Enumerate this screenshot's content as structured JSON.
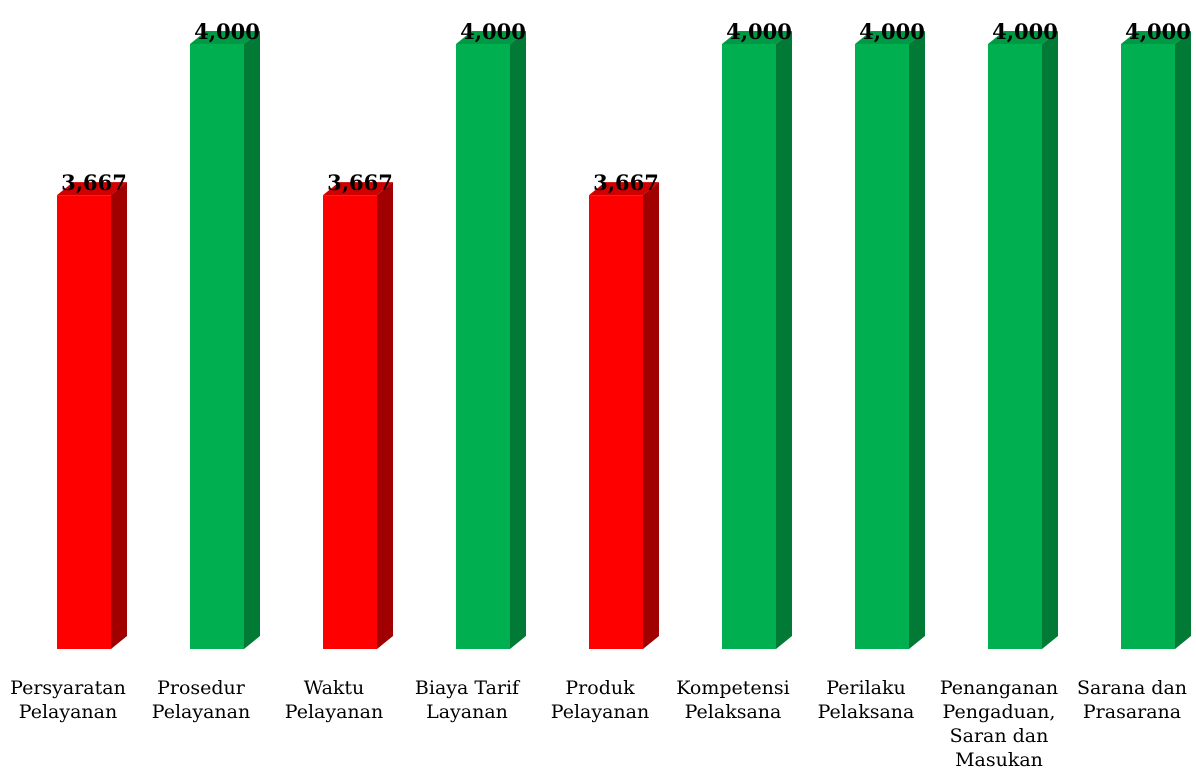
{
  "chart_data": {
    "type": "bar",
    "categories": [
      [
        "Persyaratan",
        "Pelayanan"
      ],
      [
        "Prosedur",
        "Pelayanan"
      ],
      [
        "Waktu",
        "Pelayanan"
      ],
      [
        "Biaya Tarif",
        "Layanan"
      ],
      [
        "Produk",
        "Pelayanan"
      ],
      [
        "Kompetensi",
        "Pelaksana"
      ],
      [
        "Perilaku",
        "Pelaksana"
      ],
      [
        "Penanganan",
        "Pengaduan,",
        "Saran dan",
        "Masukan"
      ],
      [
        "Sarana dan",
        "Prasarana"
      ]
    ],
    "values": [
      3.667,
      4.0,
      3.667,
      4.0,
      3.667,
      4.0,
      4.0,
      4.0,
      4.0
    ],
    "value_labels": [
      "3,667",
      "4,000",
      "3,667",
      "4,000",
      "3,667",
      "4,000",
      "4,000",
      "4,000",
      "4,000"
    ],
    "bar_colors": [
      "red",
      "green",
      "red",
      "green",
      "red",
      "green",
      "green",
      "green",
      "green"
    ],
    "colors": {
      "red": {
        "front": "#ff0000",
        "side": "#a00000",
        "top": "#d00000"
      },
      "green": {
        "front": "#00b050",
        "side": "#007a35",
        "top": "#009944"
      }
    },
    "title": "",
    "xlabel": "",
    "ylabel": "",
    "ylim": [
      2.667,
      4.0
    ],
    "grid": false,
    "legend": "none"
  }
}
